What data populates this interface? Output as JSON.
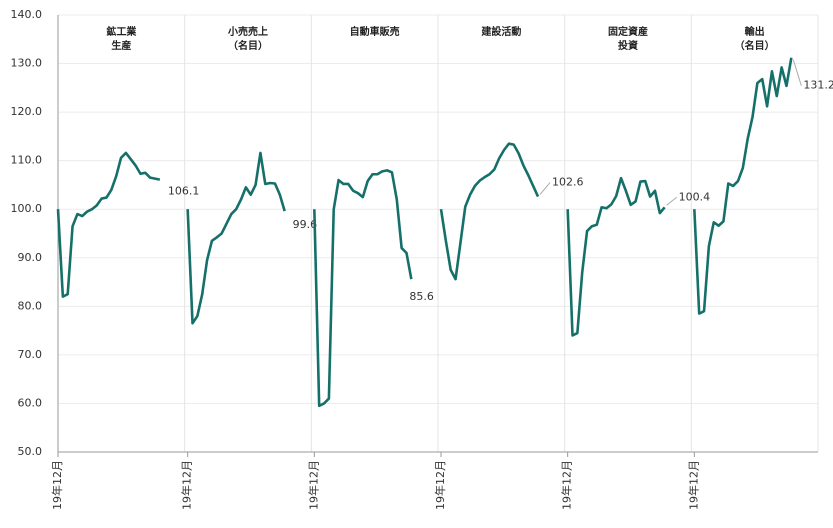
{
  "chart_data": {
    "type": "line",
    "color": "#16706a",
    "ylim": [
      50,
      140
    ],
    "yticks": [
      {
        "value": 50,
        "label": "50.0"
      },
      {
        "value": 60,
        "label": "60.0"
      },
      {
        "value": 70,
        "label": "70.0"
      },
      {
        "value": 80,
        "label": "80.0"
      },
      {
        "value": 90,
        "label": "90.0"
      },
      {
        "value": 100,
        "label": "100.0"
      },
      {
        "value": 110,
        "label": "110.0"
      },
      {
        "value": 120,
        "label": "120.0"
      },
      {
        "value": 130,
        "label": "130.0"
      },
      {
        "value": 140,
        "label": "140.0"
      }
    ],
    "grid": true,
    "panels": [
      {
        "title": [
          "鉱工業",
          "生産"
        ],
        "categories": [
          "19年12月",
          null,
          null,
          null,
          null,
          null,
          null,
          null,
          null,
          null,
          null,
          null,
          null,
          null,
          null,
          null,
          null,
          null,
          null,
          null,
          null,
          null,
          null,
          null,
          null,
          null
        ],
        "values": [
          100,
          82,
          82.5,
          96.5,
          99,
          98.6,
          99.5,
          100,
          100.8,
          102.2,
          102.4,
          104,
          106.8,
          110.6,
          111.6,
          110.3,
          109,
          107.3,
          107.5,
          106.5,
          106.3,
          106.1,
          null,
          null,
          null,
          null
        ]
      },
      {
        "title": [
          "小売売上",
          "（名目）"
        ],
        "categories": [
          "19年12月",
          null,
          null,
          null,
          null,
          null,
          null,
          null,
          null,
          null,
          null,
          null,
          null,
          null,
          null,
          null,
          null,
          null,
          null,
          null,
          null,
          null,
          null,
          null,
          null,
          null
        ],
        "values": [
          100,
          76.5,
          78,
          82.5,
          89.5,
          93.5,
          94.2,
          95,
          97,
          99,
          100,
          102,
          104.5,
          103,
          105,
          111.6,
          105.2,
          105.4,
          105.3,
          103,
          99.6,
          null,
          null,
          null,
          null,
          null
        ]
      },
      {
        "title": [
          "自動車販売"
        ],
        "categories": [
          "19年12月",
          null,
          null,
          null,
          null,
          null,
          null,
          null,
          null,
          null,
          null,
          null,
          null,
          null,
          null,
          null,
          null,
          null,
          null,
          null,
          null,
          null,
          null,
          null,
          null,
          null
        ],
        "values": [
          100,
          59.5,
          60,
          61,
          100,
          106,
          105.2,
          105.2,
          103.8,
          103.3,
          102.5,
          105.8,
          107.2,
          107.2,
          107.8,
          108,
          107.6,
          102,
          92,
          91,
          85.6,
          null,
          null,
          null,
          null,
          null
        ]
      },
      {
        "title": [
          "建設活動"
        ],
        "categories": [
          "19年12月",
          null,
          null,
          null,
          null,
          null,
          null,
          null,
          null,
          null,
          null,
          null,
          null,
          null,
          null,
          null,
          null,
          null,
          null,
          null,
          null,
          null,
          null,
          null,
          null,
          null
        ],
        "values": [
          100,
          93.5,
          87.5,
          85.6,
          93,
          100.5,
          103,
          104.8,
          105.9,
          106.6,
          107.2,
          108.2,
          110.5,
          112.2,
          113.5,
          113.3,
          111.5,
          109,
          107,
          104.8,
          102.6,
          null,
          null,
          null,
          null,
          null
        ]
      },
      {
        "title": [
          "固定資産",
          "投資"
        ],
        "categories": [
          "19年12月",
          null,
          null,
          null,
          null,
          null,
          null,
          null,
          null,
          null,
          null,
          null,
          null,
          null,
          null,
          null,
          null,
          null,
          null,
          null,
          null,
          null,
          null,
          null,
          null,
          null
        ],
        "values": [
          100,
          74,
          74.5,
          87,
          95.5,
          96.5,
          96.8,
          100.4,
          100.2,
          101,
          102.7,
          106.4,
          103.8,
          100.9,
          101.6,
          105.7,
          105.8,
          102.6,
          103.8,
          99.2,
          100.4,
          null,
          null,
          null,
          null,
          null
        ]
      },
      {
        "title": [
          "輸出",
          "（名目）"
        ],
        "categories": [
          "19年12月",
          null,
          null,
          null,
          null,
          null,
          null,
          null,
          null,
          null,
          null,
          null,
          null,
          null,
          null,
          null,
          null,
          null,
          null,
          null,
          null,
          null,
          null,
          null,
          null,
          null
        ],
        "values": [
          100,
          78.5,
          79,
          92.4,
          97.3,
          96.6,
          97.5,
          105.3,
          104.8,
          105.8,
          108.5,
          114.5,
          119,
          126,
          126.8,
          121.2,
          128.4,
          123.3,
          129.2,
          125.4,
          131.2,
          null,
          null,
          null,
          null,
          null
        ]
      }
    ]
  }
}
